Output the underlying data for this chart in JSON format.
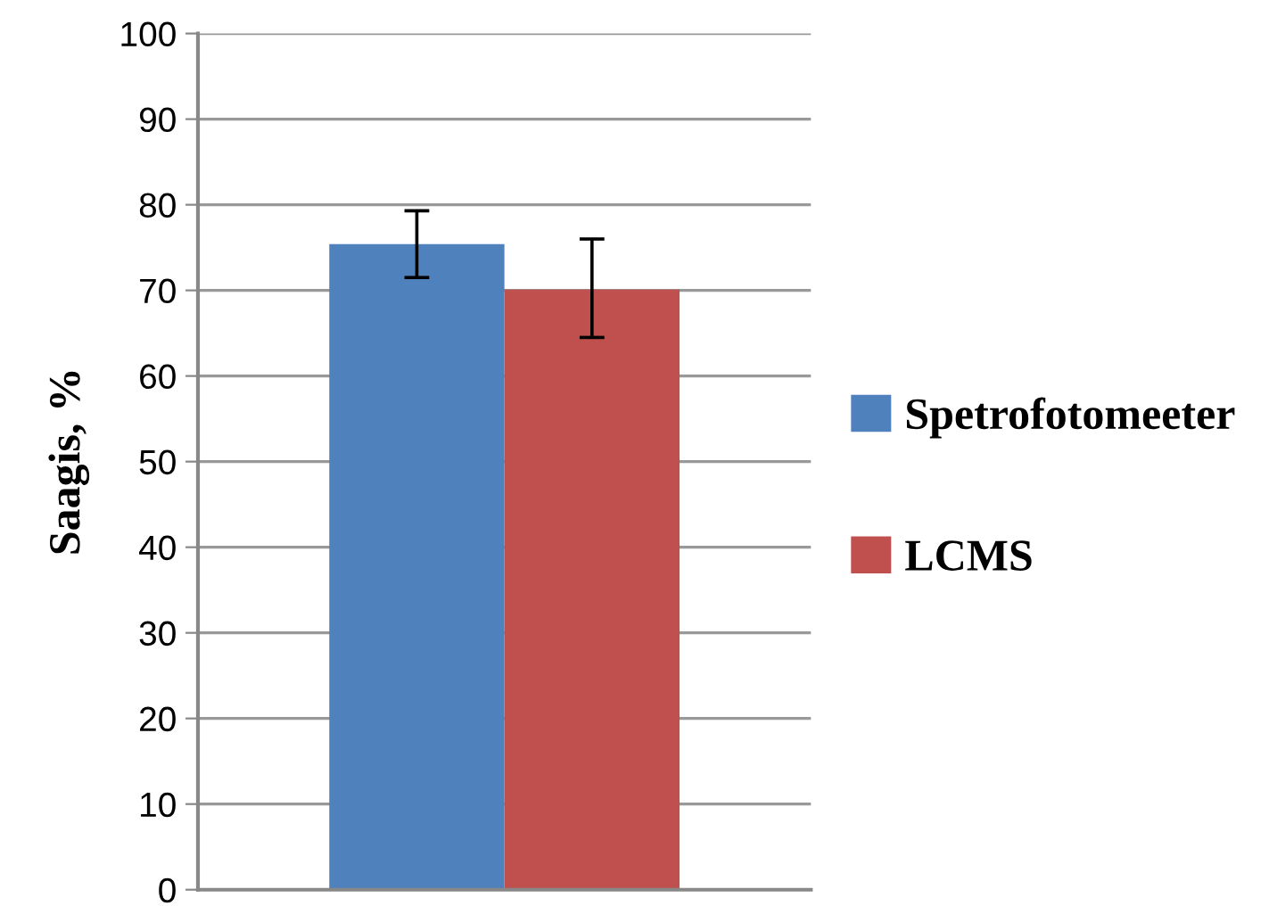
{
  "chart_data": {
    "type": "bar",
    "ylabel": "Saagis, %",
    "categories": [
      null
    ],
    "series": [
      {
        "name": "Spetrofotomeeter",
        "color": "#4f81bd",
        "values": [
          75.4
        ],
        "errors": [
          [
            71.5,
            79.3
          ]
        ]
      },
      {
        "name": "LCMS",
        "color": "#c0504d",
        "values": [
          70.1
        ],
        "errors": [
          [
            64.5,
            76.0
          ]
        ]
      }
    ],
    "ylim": [
      0,
      100
    ],
    "yticks": [
      0,
      10,
      20,
      30,
      40,
      50,
      60,
      70,
      80,
      90,
      100
    ],
    "grid": "y",
    "legend": "right"
  }
}
